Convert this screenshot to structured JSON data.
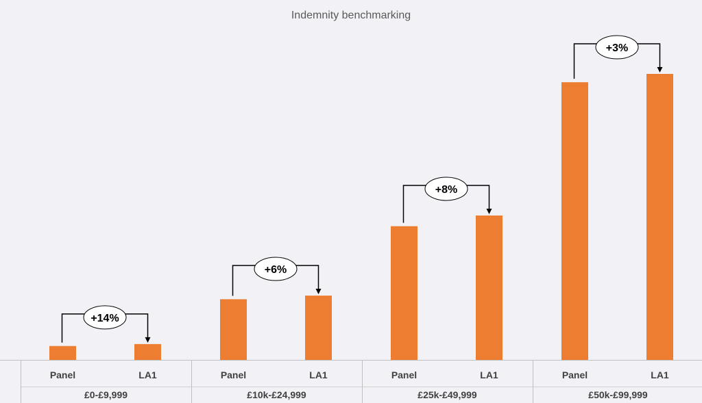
{
  "chart_data": {
    "type": "bar",
    "title": "Indemnity benchmarking",
    "series_labels": [
      "Panel",
      "LA1"
    ],
    "groups": [
      {
        "category": "£0-£9,999",
        "values": [
          100,
          114
        ],
        "change": "+14%"
      },
      {
        "category": "£10k-£24,999",
        "values": [
          437,
          463
        ],
        "change": "+6%"
      },
      {
        "category": "£25k-£49,999",
        "values": [
          963,
          1040
        ],
        "change": "+8%"
      },
      {
        "category": "£50k-£99,999",
        "values": [
          2000,
          2060
        ],
        "change": "+3%"
      }
    ],
    "ylim": [
      0,
      2060
    ],
    "bar_color": "#ED7D31",
    "grid": false,
    "legend": "none"
  }
}
